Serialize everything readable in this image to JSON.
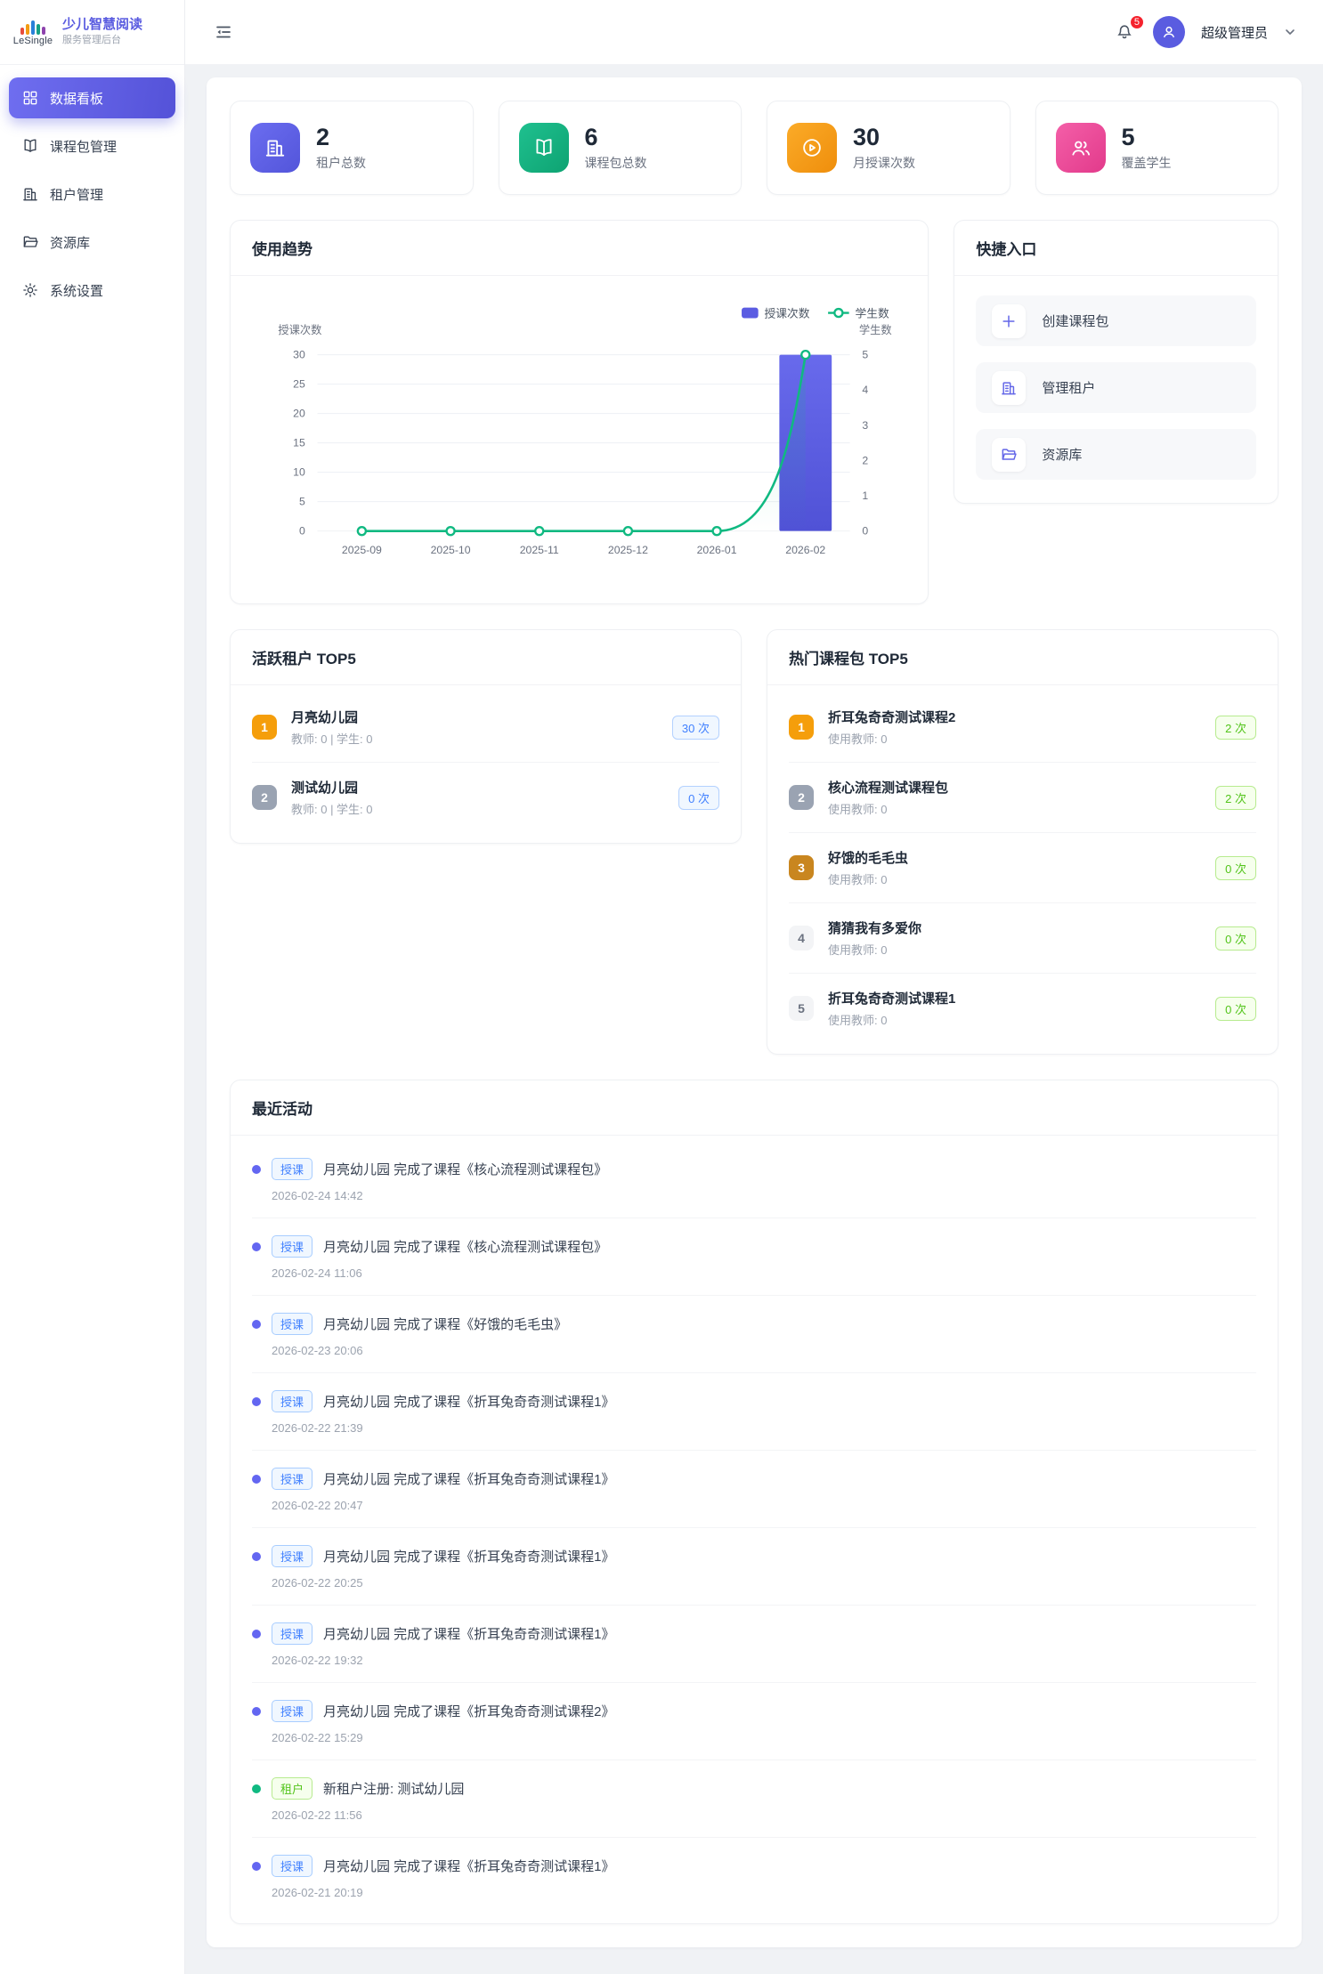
{
  "sidebar": {
    "brand": "LeSingle",
    "app_title": "少儿智慧阅读",
    "app_subtitle": "服务管理后台",
    "items": [
      {
        "label": "数据看板",
        "icon": "dashboard-icon",
        "active": true
      },
      {
        "label": "课程包管理",
        "icon": "book-icon",
        "active": false
      },
      {
        "label": "租户管理",
        "icon": "building-icon",
        "active": false
      },
      {
        "label": "资源库",
        "icon": "folder-icon",
        "active": false
      },
      {
        "label": "系统设置",
        "icon": "gear-icon",
        "active": false
      }
    ]
  },
  "header": {
    "notification_count": "5",
    "username": "超级管理员",
    "icons": [
      "menu-fold-icon",
      "bell-icon",
      "avatar-user-icon",
      "chevron-down-icon"
    ]
  },
  "stats": [
    {
      "value": "2",
      "label": "租户总数",
      "icon": "building-icon",
      "color": "#5b5ce2"
    },
    {
      "value": "6",
      "label": "课程包总数",
      "icon": "book-icon",
      "color": "#10b981"
    },
    {
      "value": "30",
      "label": "月授课次数",
      "icon": "play-circle-icon",
      "color": "#f59e0b"
    },
    {
      "value": "5",
      "label": "覆盖学生",
      "icon": "users-icon",
      "color": "#ec4899"
    }
  ],
  "chart_card": {
    "title": "使用趋势"
  },
  "chart_data": {
    "type": "bar+line",
    "categories": [
      "2025-09",
      "2025-10",
      "2025-11",
      "2025-12",
      "2026-01",
      "2026-02"
    ],
    "series": [
      {
        "name": "授课次数",
        "type": "bar",
        "axis": "left",
        "values": [
          0,
          0,
          0,
          0,
          0,
          30
        ],
        "color": "#5b5ce2"
      },
      {
        "name": "学生数",
        "type": "line",
        "axis": "right",
        "values": [
          0,
          0,
          0,
          0,
          0,
          5
        ],
        "color": "#10b981"
      }
    ],
    "left_axis": {
      "title": "授课次数",
      "ticks": [
        0,
        5,
        10,
        15,
        20,
        25,
        30
      ],
      "max": 30
    },
    "right_axis": {
      "title": "学生数",
      "ticks": [
        0,
        1,
        2,
        3,
        4,
        5
      ],
      "max": 5
    },
    "legend": [
      "授课次数",
      "学生数"
    ],
    "legend_position": "top-right",
    "grid": true
  },
  "quick_entry": {
    "title": "快捷入口",
    "items": [
      {
        "label": "创建课程包",
        "icon": "plus-icon"
      },
      {
        "label": "管理租户",
        "icon": "building-icon"
      },
      {
        "label": "资源库",
        "icon": "folder-icon"
      }
    ]
  },
  "active_tenants": {
    "title": "活跃租户 TOP5",
    "items": [
      {
        "rank": "1",
        "name": "月亮幼儿园",
        "meta": "教师: 0 | 学生: 0",
        "count": "30 次",
        "badge_bg": "#f59e0b",
        "badge_fg": "#ffffff"
      },
      {
        "rank": "2",
        "name": "测试幼儿园",
        "meta": "教师: 0 | 学生: 0",
        "count": "0 次",
        "badge_bg": "#9aa3b2",
        "badge_fg": "#ffffff"
      }
    ]
  },
  "hot_packages": {
    "title": "热门课程包 TOP5",
    "items": [
      {
        "rank": "1",
        "name": "折耳兔奇奇测试课程2",
        "meta": "使用教师: 0",
        "count": "2 次",
        "badge_bg": "#f59e0b",
        "badge_fg": "#ffffff"
      },
      {
        "rank": "2",
        "name": "核心流程测试课程包",
        "meta": "使用教师: 0",
        "count": "2 次",
        "badge_bg": "#9aa3b2",
        "badge_fg": "#ffffff"
      },
      {
        "rank": "3",
        "name": "好饿的毛毛虫",
        "meta": "使用教师: 0",
        "count": "0 次",
        "badge_bg": "#c9861f",
        "badge_fg": "#ffffff"
      },
      {
        "rank": "4",
        "name": "猜猜我有多爱你",
        "meta": "使用教师: 0",
        "count": "0 次",
        "badge_bg": "#f3f4f6",
        "badge_fg": "#6b7280"
      },
      {
        "rank": "5",
        "name": "折耳兔奇奇测试课程1",
        "meta": "使用教师: 0",
        "count": "0 次",
        "badge_bg": "#f3f4f6",
        "badge_fg": "#6b7280"
      }
    ]
  },
  "recent_activity": {
    "title": "最近活动",
    "items": [
      {
        "type": "授课",
        "text": "月亮幼儿园 完成了课程《核心流程测试课程包》",
        "time": "2026-02-24 14:42",
        "dot_color": "#6366f1",
        "badge_fg": "#4080ff",
        "badge_border": "#a8cdff",
        "badge_bg": "#f0f7ff"
      },
      {
        "type": "授课",
        "text": "月亮幼儿园 完成了课程《核心流程测试课程包》",
        "time": "2026-02-24 11:06",
        "dot_color": "#6366f1",
        "badge_fg": "#4080ff",
        "badge_border": "#a8cdff",
        "badge_bg": "#f0f7ff"
      },
      {
        "type": "授课",
        "text": "月亮幼儿园 完成了课程《好饿的毛毛虫》",
        "time": "2026-02-23 20:06",
        "dot_color": "#6366f1",
        "badge_fg": "#4080ff",
        "badge_border": "#a8cdff",
        "badge_bg": "#f0f7ff"
      },
      {
        "type": "授课",
        "text": "月亮幼儿园 完成了课程《折耳兔奇奇测试课程1》",
        "time": "2026-02-22 21:39",
        "dot_color": "#6366f1",
        "badge_fg": "#4080ff",
        "badge_border": "#a8cdff",
        "badge_bg": "#f0f7ff"
      },
      {
        "type": "授课",
        "text": "月亮幼儿园 完成了课程《折耳兔奇奇测试课程1》",
        "time": "2026-02-22 20:47",
        "dot_color": "#6366f1",
        "badge_fg": "#4080ff",
        "badge_border": "#a8cdff",
        "badge_bg": "#f0f7ff"
      },
      {
        "type": "授课",
        "text": "月亮幼儿园 完成了课程《折耳兔奇奇测试课程1》",
        "time": "2026-02-22 20:25",
        "dot_color": "#6366f1",
        "badge_fg": "#4080ff",
        "badge_border": "#a8cdff",
        "badge_bg": "#f0f7ff"
      },
      {
        "type": "授课",
        "text": "月亮幼儿园 完成了课程《折耳兔奇奇测试课程1》",
        "time": "2026-02-22 19:32",
        "dot_color": "#6366f1",
        "badge_fg": "#4080ff",
        "badge_border": "#a8cdff",
        "badge_bg": "#f0f7ff"
      },
      {
        "type": "授课",
        "text": "月亮幼儿园 完成了课程《折耳兔奇奇测试课程2》",
        "time": "2026-02-22 15:29",
        "dot_color": "#6366f1",
        "badge_fg": "#4080ff",
        "badge_border": "#a8cdff",
        "badge_bg": "#f0f7ff"
      },
      {
        "type": "租户",
        "text": "新租户注册: 测试幼儿园",
        "time": "2026-02-22 11:56",
        "dot_color": "#10b981",
        "badge_fg": "#52c41a",
        "badge_border": "#b7eb8f",
        "badge_bg": "#f6ffed"
      },
      {
        "type": "授课",
        "text": "月亮幼儿园 完成了课程《折耳兔奇奇测试课程1》",
        "time": "2026-02-21 20:19",
        "dot_color": "#6366f1",
        "badge_fg": "#4080ff",
        "badge_border": "#a8cdff",
        "badge_bg": "#f0f7ff"
      }
    ]
  },
  "colors": {
    "primary": "#5a5ce0",
    "page_background": "#f0f2f5",
    "bar_series": "#5b5ce2",
    "line_series": "#10b981",
    "notification_badge": "#f5222d"
  }
}
